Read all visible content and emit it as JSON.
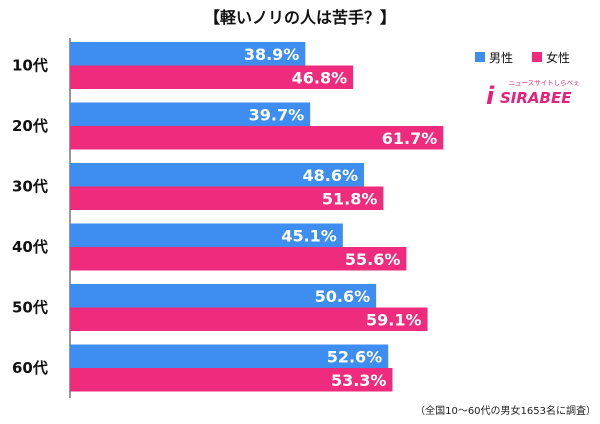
{
  "chart_data": {
    "type": "bar",
    "orientation": "horizontal",
    "title": "【軽いノリの人は苦手？】",
    "categories": [
      "10代",
      "20代",
      "30代",
      "40代",
      "50代",
      "60代"
    ],
    "series": [
      {
        "name": "男性",
        "values": [
          38.9,
          39.7,
          48.6,
          45.1,
          50.6,
          52.6
        ]
      },
      {
        "name": "女性",
        "values": [
          46.8,
          61.7,
          51.8,
          55.6,
          59.1,
          53.3
        ]
      }
    ],
    "value_labels": {
      "male": [
        "38.9%",
        "39.7%",
        "48.6%",
        "45.1%",
        "50.6%",
        "52.6%"
      ],
      "female": [
        "46.8%",
        "61.7%",
        "51.8%",
        "55.6%",
        "59.1%",
        "53.3%"
      ]
    },
    "xlim": [
      0,
      100
    ],
    "legend_position": "top-right",
    "grid": false,
    "colors": {
      "male": "#3d8ef0",
      "female": "#ee2b7c"
    },
    "footnote": "（全国10〜60代の男女1653名に調査）"
  },
  "logo": {
    "text": "SIRABEE",
    "tagline": "ニュースサイトしらべぇ",
    "mark": "i",
    "color": "#e8207a"
  }
}
